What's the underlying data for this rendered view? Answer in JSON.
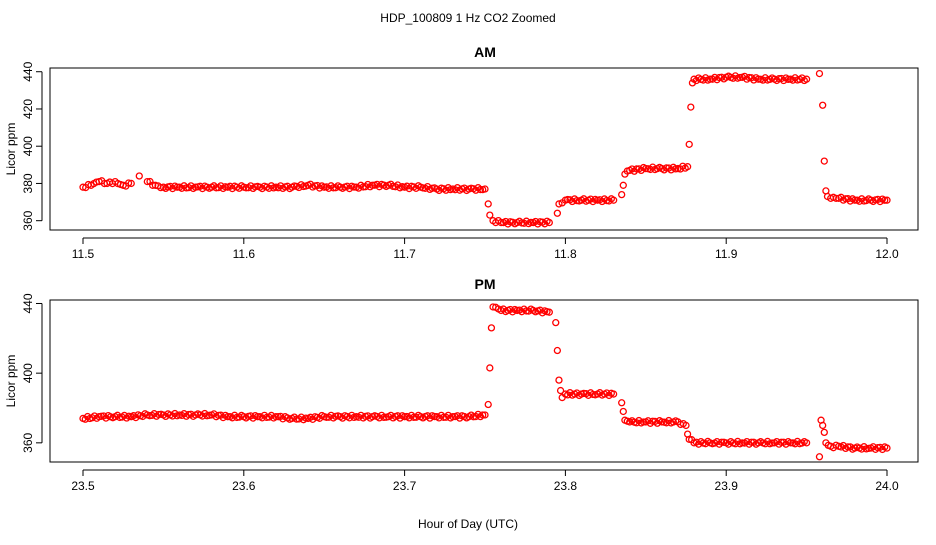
{
  "figure": {
    "title": "HDP_100809  1 Hz CO2 Zoomed",
    "xlabel": "Hour of Day (UTC)"
  },
  "colors": {
    "points": "#ff0000",
    "axes": "#000000",
    "background": "#ffffff"
  },
  "chart_data": [
    {
      "type": "scatter",
      "title": "AM",
      "xlabel": "",
      "ylabel": "Licor ppm",
      "xlim": [
        11.5,
        12.0
      ],
      "ylim": [
        355,
        442
      ],
      "xticks": [
        11.5,
        11.6,
        11.7,
        11.8,
        11.9,
        12.0
      ],
      "xtick_labels": [
        "11.5",
        "11.6",
        "11.7",
        "11.8",
        "11.9",
        "12.0"
      ],
      "yticks": [
        360,
        380,
        400,
        420,
        440
      ],
      "ytick_labels": [
        "360",
        "380",
        "400",
        "420",
        "440"
      ],
      "grid": false,
      "series": [
        {
          "x": [
            11.5,
            11.505,
            11.51,
            11.515,
            11.52,
            11.525,
            11.53,
            11.535,
            11.54,
            11.545,
            11.55,
            11.56,
            11.57,
            11.58,
            11.59,
            11.6,
            11.61,
            11.62,
            11.63,
            11.64,
            11.65,
            11.66,
            11.67,
            11.68,
            11.69,
            11.7,
            11.71,
            11.72,
            11.73,
            11.74,
            11.75,
            11.752,
            11.753,
            11.755,
            11.76,
            11.77,
            11.78,
            11.79,
            11.795,
            11.796,
            11.8,
            11.81,
            11.82,
            11.83,
            11.835,
            11.836,
            11.837,
            11.84,
            11.85,
            11.86,
            11.87,
            11.876,
            11.877,
            11.878,
            11.879,
            11.88,
            11.89,
            11.9,
            11.91,
            11.92,
            11.93,
            11.94,
            11.95,
            11.958,
            11.96,
            11.961,
            11.962,
            11.963,
            11.965,
            11.97,
            11.98,
            11.99,
            12.0
          ],
          "y": [
            378,
            379,
            381,
            380,
            381,
            379,
            380,
            384,
            381,
            379,
            378,
            378,
            378,
            378,
            378,
            378,
            378,
            378,
            378,
            379,
            378,
            378,
            378,
            379,
            379,
            378,
            378,
            377,
            377,
            377,
            377,
            369,
            363,
            360,
            359,
            359,
            359,
            359,
            364,
            369,
            371,
            371,
            371,
            371,
            374,
            379,
            385,
            387,
            388,
            388,
            388,
            389,
            401,
            421,
            434,
            436,
            436,
            437,
            437,
            436,
            436,
            436,
            436,
            439,
            422,
            392,
            376,
            373,
            372,
            372,
            371,
            371,
            371
          ]
        }
      ]
    },
    {
      "type": "scatter",
      "title": "PM",
      "xlabel": "Hour of Day (UTC)",
      "ylabel": "Licor ppm",
      "xlim": [
        23.5,
        24.0
      ],
      "ylim": [
        349,
        442
      ],
      "xticks": [
        23.5,
        23.6,
        23.7,
        23.8,
        23.9,
        24.0
      ],
      "xtick_labels": [
        "23.5",
        "23.6",
        "23.7",
        "23.8",
        "23.9",
        "24.0"
      ],
      "yticks": [
        360,
        400,
        440
      ],
      "ytick_labels": [
        "360",
        "400",
        "440"
      ],
      "grid": false,
      "series": [
        {
          "x": [
            23.5,
            23.51,
            23.52,
            23.53,
            23.54,
            23.55,
            23.56,
            23.57,
            23.58,
            23.59,
            23.6,
            23.61,
            23.62,
            23.63,
            23.64,
            23.65,
            23.66,
            23.67,
            23.68,
            23.69,
            23.7,
            23.71,
            23.72,
            23.73,
            23.74,
            23.75,
            23.752,
            23.753,
            23.754,
            23.755,
            23.76,
            23.77,
            23.78,
            23.79,
            23.794,
            23.795,
            23.796,
            23.797,
            23.798,
            23.8,
            23.81,
            23.82,
            23.83,
            23.835,
            23.836,
            23.837,
            23.84,
            23.85,
            23.86,
            23.87,
            23.875,
            23.876,
            23.877,
            23.88,
            23.89,
            23.9,
            23.91,
            23.92,
            23.93,
            23.94,
            23.95,
            23.958,
            23.959,
            23.96,
            23.961,
            23.962,
            23.965,
            23.97,
            23.98,
            23.99,
            24.0
          ],
          "y": [
            374,
            375,
            375,
            375,
            376,
            376,
            376,
            376,
            376,
            375,
            375,
            375,
            375,
            374,
            374,
            375,
            375,
            375,
            375,
            375,
            375,
            375,
            375,
            375,
            375,
            376,
            382,
            403,
            426,
            438,
            436,
            436,
            436,
            435,
            429,
            413,
            396,
            390,
            386,
            388,
            388,
            388,
            388,
            383,
            378,
            373,
            372,
            372,
            372,
            372,
            370,
            365,
            362,
            360,
            360,
            360,
            360,
            360,
            360,
            360,
            360,
            352,
            373,
            370,
            366,
            360,
            358,
            358,
            357,
            357,
            357
          ]
        }
      ]
    }
  ]
}
